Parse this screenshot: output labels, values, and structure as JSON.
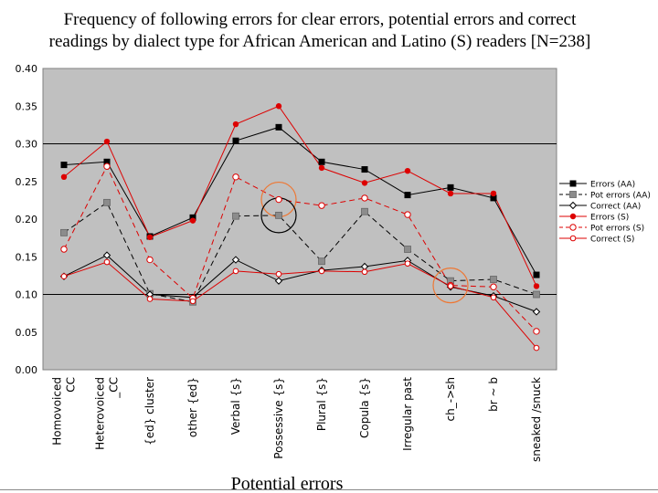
{
  "chart_data": {
    "type": "line",
    "title_lines": [
      "Frequency of following errors for clear errors, potential errors and correct",
      "readings by dialect type for African American and Latino (S) readers [N=238]"
    ],
    "xlabel": "Potential errors",
    "ylabel": "",
    "ylim": [
      0,
      0.4
    ],
    "y_ticks": [
      0.0,
      0.05,
      0.1,
      0.15,
      0.2,
      0.25,
      0.3,
      0.35,
      0.4
    ],
    "y_tick_labels": [
      "0.00",
      "0.05",
      "0.10",
      "0.15",
      "0.20",
      "0.25",
      "0.30",
      "0.35",
      "0.40"
    ],
    "gridlines": [
      0.1,
      0.3
    ],
    "legend_position": "right",
    "categories": [
      "Homovoiced CC",
      "Heterovoiced _CC",
      "{ed} cluster",
      "other {ed}",
      "Verbal {s}",
      "Possessive {s}",
      "Plural {s}",
      "Copula {s}",
      "Irregular past",
      "ch_->sh",
      "br ~ b",
      "sneaked /snuck"
    ],
    "category_label_lines": [
      [
        "Homovoiced",
        "CC"
      ],
      [
        "Heterovoiced",
        "_CC"
      ],
      [
        "{ed} cluster"
      ],
      [
        "other {ed}"
      ],
      [
        "Verbal {s}"
      ],
      [
        "Possessive {s}"
      ],
      [
        "Plural {s}"
      ],
      [
        "Copula {s}"
      ],
      [
        "Irregular past"
      ],
      [
        "ch_->sh"
      ],
      [
        "br ~ b"
      ],
      [
        "sneaked /snuck"
      ]
    ],
    "series": [
      {
        "name": "Errors (AA)",
        "color": "#000000",
        "dash": "solid",
        "marker": "square-filled",
        "values": [
          0.272,
          0.276,
          0.177,
          0.202,
          0.304,
          0.322,
          0.276,
          0.266,
          0.232,
          0.242,
          0.228,
          0.126
        ]
      },
      {
        "name": "Pot errors (AA)",
        "color": "#000000",
        "dash": "dashed",
        "marker": "square-gray",
        "values": [
          0.182,
          0.222,
          0.101,
          0.09,
          0.204,
          0.205,
          0.144,
          0.21,
          0.16,
          0.118,
          0.12,
          0.1
        ]
      },
      {
        "name": "Correct (AA)",
        "color": "#000000",
        "dash": "solid",
        "marker": "diamond-open",
        "values": [
          0.124,
          0.152,
          0.1,
          0.096,
          0.146,
          0.118,
          0.132,
          0.137,
          0.145,
          0.11,
          0.098,
          0.077
        ]
      },
      {
        "name": "Errors (S)",
        "color": "#dd0000",
        "dash": "solid",
        "marker": "circle-filled",
        "values": [
          0.256,
          0.303,
          0.176,
          0.198,
          0.326,
          0.35,
          0.268,
          0.248,
          0.264,
          0.234,
          0.234,
          0.111
        ]
      },
      {
        "name": "Pot errors (S)",
        "color": "#dd0000",
        "dash": "dashed",
        "marker": "circle-open",
        "values": [
          0.16,
          0.27,
          0.146,
          0.095,
          0.256,
          0.226,
          0.218,
          0.228,
          0.206,
          0.112,
          0.11,
          0.051
        ]
      },
      {
        "name": "Correct (S)",
        "color": "#dd0000",
        "dash": "solid",
        "marker": "circle-open-small",
        "values": [
          0.124,
          0.143,
          0.094,
          0.091,
          0.131,
          0.127,
          0.131,
          0.13,
          0.141,
          0.111,
          0.096,
          0.029
        ]
      }
    ],
    "annotations": [
      {
        "type": "circle",
        "color": "#ee7733",
        "category": "Possessive {s}",
        "value": 0.226
      },
      {
        "type": "circle",
        "color": "#000000",
        "category": "Possessive {s}",
        "value": 0.205
      },
      {
        "type": "circle",
        "color": "#ee7733",
        "category": "ch_->sh",
        "value": 0.112
      }
    ]
  }
}
